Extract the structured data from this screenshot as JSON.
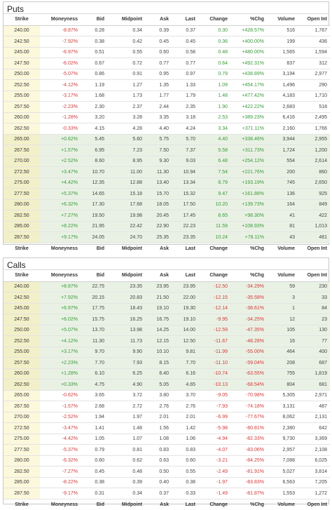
{
  "columns": [
    "Strike",
    "Moneyness",
    "Bid",
    "Midpoint",
    "Ask",
    "Last",
    "Change",
    "%Chg",
    "Volume",
    "Open Int"
  ],
  "colors": {
    "positive": "#3a9a3a",
    "negative": "#d43a3a",
    "itm_row": "#e9f1e4",
    "strike_cell": "#fbf8dc"
  },
  "puts": {
    "title": "Puts",
    "rows": [
      {
        "strike": "240.00",
        "moneyness": "-8.87%",
        "bid": "0.28",
        "midpoint": "0.34",
        "ask": "0.39",
        "last": "0.37",
        "change": "0.30",
        "pctchg": "+428.57%",
        "volume": "516",
        "open_int": "1,767",
        "itm": false
      },
      {
        "strike": "242.50",
        "moneyness": "-7.92%",
        "bid": "0.38",
        "midpoint": "0.42",
        "ask": "0.45",
        "last": "0.45",
        "change": "0.36",
        "pctchg": "+400.00%",
        "volume": "199",
        "open_int": "436",
        "itm": false
      },
      {
        "strike": "245.00",
        "moneyness": "-6.97%",
        "bid": "0.51",
        "midpoint": "0.55",
        "ask": "0.60",
        "last": "0.58",
        "change": "0.48",
        "pctchg": "+480.00%",
        "volume": "1,565",
        "open_int": "1,594",
        "itm": false
      },
      {
        "strike": "247.50",
        "moneyness": "-6.02%",
        "bid": "0.67",
        "midpoint": "0.72",
        "ask": "0.77",
        "last": "0.77",
        "change": "0.64",
        "pctchg": "+492.31%",
        "volume": "837",
        "open_int": "312",
        "itm": false
      },
      {
        "strike": "250.00",
        "moneyness": "-5.07%",
        "bid": "0.86",
        "midpoint": "0.91",
        "ask": "0.95",
        "last": "0.97",
        "change": "0.79",
        "pctchg": "+438.89%",
        "volume": "3,194",
        "open_int": "2,977",
        "itm": false
      },
      {
        "strike": "252.50",
        "moneyness": "-4.12%",
        "bid": "1.19",
        "midpoint": "1.27",
        "ask": "1.35",
        "last": "1.33",
        "change": "1.09",
        "pctchg": "+454.17%",
        "volume": "1,496",
        "open_int": "290",
        "itm": false
      },
      {
        "strike": "255.00",
        "moneyness": "-3.17%",
        "bid": "1.68",
        "midpoint": "1.73",
        "ask": "1.77",
        "last": "1.79",
        "change": "1.48",
        "pctchg": "+477.42%",
        "volume": "4,183",
        "open_int": "1,710",
        "itm": false
      },
      {
        "strike": "257.50",
        "moneyness": "-2.23%",
        "bid": "2.30",
        "midpoint": "2.37",
        "ask": "2.44",
        "last": "2.35",
        "change": "1.90",
        "pctchg": "+422.22%",
        "volume": "2,683",
        "open_int": "518",
        "itm": false
      },
      {
        "strike": "260.00",
        "moneyness": "-1.28%",
        "bid": "3.20",
        "midpoint": "3.28",
        "ask": "3.35",
        "last": "3.18",
        "change": "2.53",
        "pctchg": "+389.23%",
        "volume": "6,416",
        "open_int": "2,495",
        "itm": false
      },
      {
        "strike": "262.50",
        "moneyness": "-0.33%",
        "bid": "4.15",
        "midpoint": "4.28",
        "ask": "4.40",
        "last": "4.24",
        "change": "3.34",
        "pctchg": "+371.11%",
        "volume": "2,160",
        "open_int": "1,766",
        "itm": false
      },
      {
        "strike": "265.00",
        "moneyness": "+0.62%",
        "bid": "5.45",
        "midpoint": "5.60",
        "ask": "5.75",
        "last": "5.70",
        "change": "4.40",
        "pctchg": "+338.46%",
        "volume": "3,944",
        "open_int": "2,955",
        "itm": true
      },
      {
        "strike": "267.50",
        "moneyness": "+1.57%",
        "bid": "6.95",
        "midpoint": "7.23",
        "ask": "7.50",
        "last": "7.37",
        "change": "5.58",
        "pctchg": "+311.73%",
        "volume": "1,724",
        "open_int": "1,200",
        "itm": true
      },
      {
        "strike": "270.00",
        "moneyness": "+2.52%",
        "bid": "8.60",
        "midpoint": "8.95",
        "ask": "9.30",
        "last": "9.03",
        "change": "6.48",
        "pctchg": "+254.12%",
        "volume": "554",
        "open_int": "2,614",
        "itm": true
      },
      {
        "strike": "272.50",
        "moneyness": "+3.47%",
        "bid": "10.70",
        "midpoint": "11.00",
        "ask": "11.30",
        "last": "10.94",
        "change": "7.54",
        "pctchg": "+221.76%",
        "volume": "200",
        "open_int": "860",
        "itm": true
      },
      {
        "strike": "275.00",
        "moneyness": "+4.42%",
        "bid": "12.35",
        "midpoint": "12.88",
        "ask": "13.40",
        "last": "13.34",
        "change": "8.79",
        "pctchg": "+193.19%",
        "volume": "745",
        "open_int": "2,650",
        "itm": true
      },
      {
        "strike": "277.50",
        "moneyness": "+5.37%",
        "bid": "14.65",
        "midpoint": "15.18",
        "ask": "15.70",
        "last": "15.32",
        "change": "9.47",
        "pctchg": "+161.88%",
        "volume": "136",
        "open_int": "925",
        "itm": true
      },
      {
        "strike": "280.00",
        "moneyness": "+6.32%",
        "bid": "17.30",
        "midpoint": "17.68",
        "ask": "18.05",
        "last": "17.50",
        "change": "10.20",
        "pctchg": "+139.73%",
        "volume": "164",
        "open_int": "849",
        "itm": true
      },
      {
        "strike": "282.50",
        "moneyness": "+7.27%",
        "bid": "19.50",
        "midpoint": "19.98",
        "ask": "20.45",
        "last": "17.45",
        "change": "8.65",
        "pctchg": "+98.30%",
        "volume": "41",
        "open_int": "422",
        "itm": true
      },
      {
        "strike": "285.00",
        "moneyness": "+8.22%",
        "bid": "21.95",
        "midpoint": "22.42",
        "ask": "22.90",
        "last": "22.23",
        "change": "11.59",
        "pctchg": "+108.93%",
        "volume": "81",
        "open_int": "1,013",
        "itm": true
      },
      {
        "strike": "287.50",
        "moneyness": "+9.17%",
        "bid": "24.05",
        "midpoint": "24.70",
        "ask": "25.35",
        "last": "23.35",
        "change": "10.24",
        "pctchg": "+78.11%",
        "volume": "43",
        "open_int": "481",
        "itm": true
      }
    ]
  },
  "calls": {
    "title": "Calls",
    "rows": [
      {
        "strike": "240.00",
        "moneyness": "+8.87%",
        "bid": "22.75",
        "midpoint": "23.35",
        "ask": "23.95",
        "last": "23.95",
        "change": "-12.50",
        "pctchg": "-34.29%",
        "volume": "59",
        "open_int": "230",
        "itm": true
      },
      {
        "strike": "242.50",
        "moneyness": "+7.92%",
        "bid": "20.15",
        "midpoint": "20.83",
        "ask": "21.50",
        "last": "22.00",
        "change": "-12.15",
        "pctchg": "-35.58%",
        "volume": "3",
        "open_int": "33",
        "itm": true
      },
      {
        "strike": "245.00",
        "moneyness": "+6.97%",
        "bid": "17.75",
        "midpoint": "18.43",
        "ask": "19.10",
        "last": "19.30",
        "change": "-12.14",
        "pctchg": "-38.61%",
        "volume": "1",
        "open_int": "84",
        "itm": true
      },
      {
        "strike": "247.50",
        "moneyness": "+6.02%",
        "bid": "15.75",
        "midpoint": "16.25",
        "ask": "16.75",
        "last": "19.10",
        "change": "-9.95",
        "pctchg": "-34.25%",
        "volume": "12",
        "open_int": "23",
        "itm": true
      },
      {
        "strike": "250.00",
        "moneyness": "+5.07%",
        "bid": "13.70",
        "midpoint": "13.98",
        "ask": "14.25",
        "last": "14.00",
        "change": "-12.59",
        "pctchg": "-47.35%",
        "volume": "105",
        "open_int": "130",
        "itm": true
      },
      {
        "strike": "252.50",
        "moneyness": "+4.12%",
        "bid": "11.30",
        "midpoint": "11.73",
        "ask": "12.15",
        "last": "12.50",
        "change": "-11.67",
        "pctchg": "-48.28%",
        "volume": "16",
        "open_int": "77",
        "itm": true
      },
      {
        "strike": "255.00",
        "moneyness": "+3.17%",
        "bid": "9.70",
        "midpoint": "9.90",
        "ask": "10.10",
        "last": "9.81",
        "change": "-11.99",
        "pctchg": "-55.00%",
        "volume": "464",
        "open_int": "400",
        "itm": true
      },
      {
        "strike": "257.50",
        "moneyness": "+2.23%",
        "bid": "7.70",
        "midpoint": "7.93",
        "ask": "8.15",
        "last": "7.70",
        "change": "-11.10",
        "pctchg": "-59.04%",
        "volume": "208",
        "open_int": "687",
        "itm": true
      },
      {
        "strike": "260.00",
        "moneyness": "+1.28%",
        "bid": "6.10",
        "midpoint": "6.25",
        "ask": "6.40",
        "last": "6.16",
        "change": "-10.74",
        "pctchg": "-63.55%",
        "volume": "755",
        "open_int": "1,819",
        "itm": true
      },
      {
        "strike": "262.50",
        "moneyness": "+0.33%",
        "bid": "4.75",
        "midpoint": "4.90",
        "ask": "5.05",
        "last": "4.65",
        "change": "-10.13",
        "pctchg": "-68.54%",
        "volume": "804",
        "open_int": "681",
        "itm": true
      },
      {
        "strike": "265.00",
        "moneyness": "-0.62%",
        "bid": "3.65",
        "midpoint": "3.72",
        "ask": "3.80",
        "last": "3.70",
        "change": "-9.05",
        "pctchg": "-70.98%",
        "volume": "5,305",
        "open_int": "2,971",
        "itm": false
      },
      {
        "strike": "267.50",
        "moneyness": "-1.57%",
        "bid": "2.68",
        "midpoint": "2.72",
        "ask": "2.76",
        "last": "2.76",
        "change": "-7.93",
        "pctchg": "-74.18%",
        "volume": "3,131",
        "open_int": "487",
        "itm": false
      },
      {
        "strike": "270.00",
        "moneyness": "-2.52%",
        "bid": "1.94",
        "midpoint": "1.97",
        "ask": "2.01",
        "last": "2.01",
        "change": "-6.99",
        "pctchg": "-77.67%",
        "volume": "8,062",
        "open_int": "2,131",
        "itm": false
      },
      {
        "strike": "272.50",
        "moneyness": "-3.47%",
        "bid": "1.41",
        "midpoint": "1.48",
        "ask": "1.56",
        "last": "1.42",
        "change": "-5.98",
        "pctchg": "-80.81%",
        "volume": "2,380",
        "open_int": "642",
        "itm": false
      },
      {
        "strike": "275.00",
        "moneyness": "-4.42%",
        "bid": "1.05",
        "midpoint": "1.07",
        "ask": "1.08",
        "last": "1.06",
        "change": "-4.94",
        "pctchg": "-82.33%",
        "volume": "9,730",
        "open_int": "3,369",
        "itm": false
      },
      {
        "strike": "277.50",
        "moneyness": "-5.37%",
        "bid": "0.79",
        "midpoint": "0.81",
        "ask": "0.83",
        "last": "0.83",
        "change": "-4.07",
        "pctchg": "-83.06%",
        "volume": "2,957",
        "open_int": "2,108",
        "itm": false
      },
      {
        "strike": "280.00",
        "moneyness": "-6.32%",
        "bid": "0.60",
        "midpoint": "0.62",
        "ask": "0.63",
        "last": "0.60",
        "change": "-3.21",
        "pctchg": "-84.25%",
        "volume": "7,088",
        "open_int": "6,025",
        "itm": false
      },
      {
        "strike": "282.50",
        "moneyness": "-7.27%",
        "bid": "0.45",
        "midpoint": "0.48",
        "ask": "0.50",
        "last": "0.55",
        "change": "-2.49",
        "pctchg": "-81.91%",
        "volume": "5,027",
        "open_int": "3,814",
        "itm": false
      },
      {
        "strike": "285.00",
        "moneyness": "-8.22%",
        "bid": "0.38",
        "midpoint": "0.39",
        "ask": "0.40",
        "last": "0.38",
        "change": "-1.97",
        "pctchg": "-83.83%",
        "volume": "6,563",
        "open_int": "7,205",
        "itm": false
      },
      {
        "strike": "287.50",
        "moneyness": "-9.17%",
        "bid": "0.31",
        "midpoint": "0.34",
        "ask": "0.37",
        "last": "0.33",
        "change": "-1.49",
        "pctchg": "-81.87%",
        "volume": "1,553",
        "open_int": "1,272",
        "itm": false
      }
    ]
  }
}
